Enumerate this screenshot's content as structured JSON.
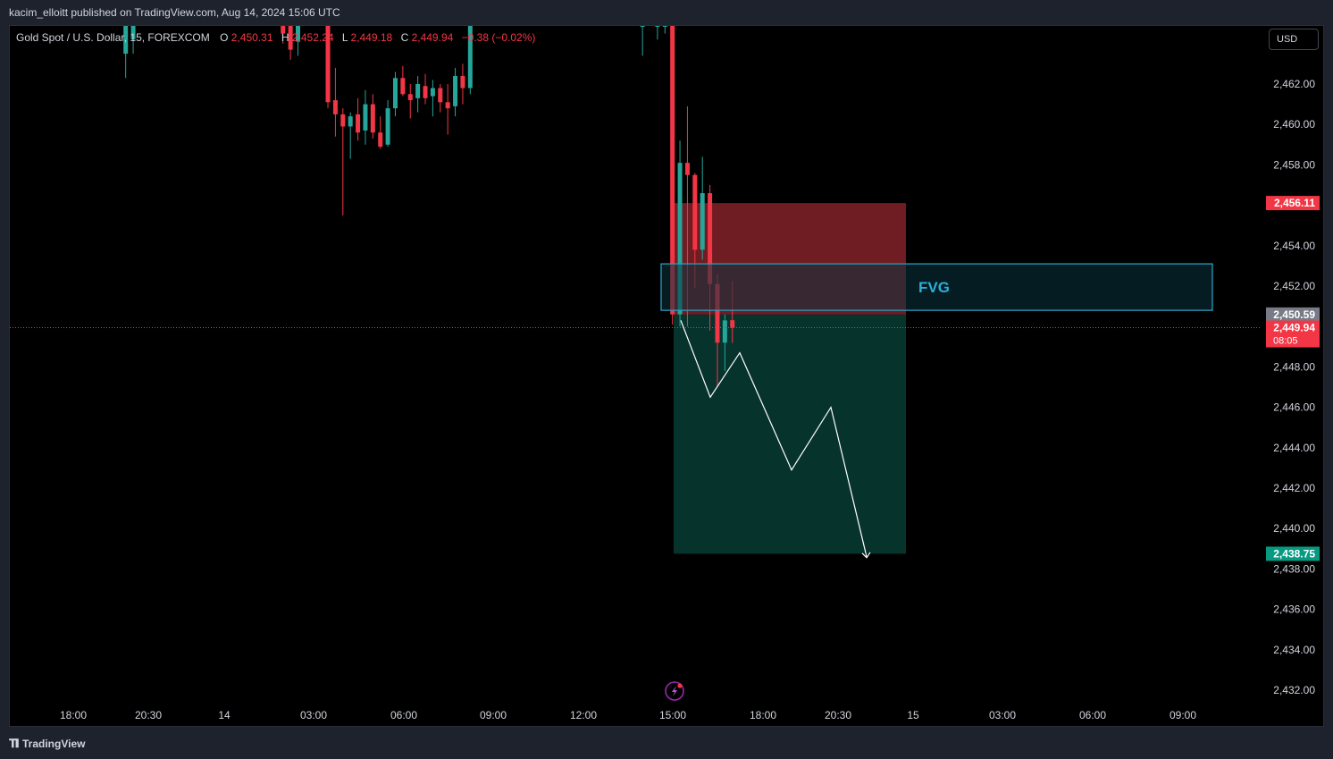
{
  "header": {
    "published": "kacim_elloitt published on TradingView.com, Aug 14, 2024 15:06 UTC"
  },
  "legend": {
    "symbol": "Gold Spot / U.S. Dollar, 15, FOREXCOM",
    "open_label": "O",
    "open": "2,450.31",
    "high_label": "H",
    "high": "2,452.24",
    "low_label": "L",
    "low": "2,449.18",
    "close_label": "C",
    "close": "2,449.94",
    "change": "−0.38 (−0.02%)"
  },
  "currency_button": "USD",
  "footer": {
    "brand": "TradingView"
  },
  "colors": {
    "up": "#26a69a",
    "down": "#f23645",
    "stop_zone": "#6f1c22",
    "target_zone": "#07332d",
    "fvg_border": "#2c9dbd",
    "fvg_fill": "#0a3340",
    "fvg_text": "#2ab0d8",
    "last_price_line": "#f23645"
  },
  "chart_data": {
    "type": "candlestick",
    "symbol": "Gold Spot / U.S. Dollar",
    "interval": "15",
    "y_axis": {
      "ticks": [
        2432,
        2434,
        2436,
        2438,
        2440,
        2442,
        2444,
        2446,
        2448,
        2450,
        2452,
        2454,
        2456,
        2458,
        2460,
        2462
      ],
      "tick_labels": [
        "2,432.00",
        "2,434.00",
        "2,436.00",
        "2,438.00",
        "2,440.00",
        "2,442.00",
        "2,444.00",
        "2,446.00",
        "2,448.00",
        "2,450.00",
        "2,452.00",
        "2,454.00",
        "2,456.00",
        "2,458.00",
        "2,460.00",
        "2,462.00"
      ],
      "hidden_tick_labels": [
        "2,450.00",
        "2,456.00"
      ]
    },
    "x_axis": {
      "tick_labels": [
        "18:00",
        "20:30",
        "14",
        "03:00",
        "06:00",
        "09:00",
        "12:00",
        "15:00",
        "18:00",
        "20:30",
        "15",
        "03:00",
        "06:00",
        "09:00"
      ]
    },
    "candles": [
      {
        "t": "Aug 13 19:45",
        "o": 2463.5,
        "h": 2465.0,
        "l": 2462.3,
        "c": 2465.0
      },
      {
        "t": "Aug 13 20:00",
        "o": 2464.2,
        "h": 2465.0,
        "l": 2463.5,
        "c": 2465.0
      },
      {
        "t": "Aug 14 01:00",
        "o": 2465.0,
        "h": 2465.0,
        "l": 2464.0,
        "c": 2464.5
      },
      {
        "t": "Aug 14 01:15",
        "o": 2465.0,
        "h": 2465.0,
        "l": 2463.2,
        "c": 2463.7
      },
      {
        "t": "Aug 14 01:30",
        "o": 2464.1,
        "h": 2465.0,
        "l": 2463.4,
        "c": 2465.0
      },
      {
        "t": "Aug 14 02:30",
        "o": 2465.0,
        "h": 2465.0,
        "l": 2460.8,
        "c": 2461.1
      },
      {
        "t": "Aug 14 02:45",
        "o": 2461.2,
        "h": 2462.8,
        "l": 2459.4,
        "c": 2460.5
      },
      {
        "t": "Aug 14 03:00",
        "o": 2460.5,
        "h": 2460.8,
        "l": 2455.5,
        "c": 2459.9
      },
      {
        "t": "Aug 14 03:15",
        "o": 2459.9,
        "h": 2460.6,
        "l": 2458.3,
        "c": 2460.4
      },
      {
        "t": "Aug 14 03:30",
        "o": 2460.5,
        "h": 2461.3,
        "l": 2459.2,
        "c": 2459.6
      },
      {
        "t": "Aug 14 03:45",
        "o": 2459.7,
        "h": 2461.7,
        "l": 2459.0,
        "c": 2461.0
      },
      {
        "t": "Aug 14 04:00",
        "o": 2461.0,
        "h": 2461.5,
        "l": 2459.3,
        "c": 2459.6
      },
      {
        "t": "Aug 14 04:15",
        "o": 2459.6,
        "h": 2460.4,
        "l": 2458.8,
        "c": 2458.9
      },
      {
        "t": "Aug 14 04:30",
        "o": 2459.0,
        "h": 2461.2,
        "l": 2458.9,
        "c": 2460.8
      },
      {
        "t": "Aug 14 04:45",
        "o": 2460.8,
        "h": 2462.6,
        "l": 2460.4,
        "c": 2462.3
      },
      {
        "t": "Aug 14 05:00",
        "o": 2462.3,
        "h": 2462.9,
        "l": 2461.4,
        "c": 2461.5
      },
      {
        "t": "Aug 14 05:15",
        "o": 2461.5,
        "h": 2462.0,
        "l": 2460.3,
        "c": 2461.2
      },
      {
        "t": "Aug 14 05:30",
        "o": 2461.3,
        "h": 2462.4,
        "l": 2460.6,
        "c": 2462.0
      },
      {
        "t": "Aug 14 05:45",
        "o": 2461.9,
        "h": 2462.5,
        "l": 2461.0,
        "c": 2461.3
      },
      {
        "t": "Aug 14 06:00",
        "o": 2461.4,
        "h": 2462.2,
        "l": 2460.4,
        "c": 2461.8
      },
      {
        "t": "Aug 14 06:15",
        "o": 2461.8,
        "h": 2462.0,
        "l": 2460.6,
        "c": 2461.1
      },
      {
        "t": "Aug 14 06:30",
        "o": 2461.1,
        "h": 2462.0,
        "l": 2459.5,
        "c": 2460.8
      },
      {
        "t": "Aug 14 06:45",
        "o": 2460.9,
        "h": 2462.8,
        "l": 2460.4,
        "c": 2462.4
      },
      {
        "t": "Aug 14 07:00",
        "o": 2462.4,
        "h": 2463.0,
        "l": 2461.0,
        "c": 2461.8
      },
      {
        "t": "Aug 14 07:15",
        "o": 2461.8,
        "h": 2465.0,
        "l": 2461.5,
        "c": 2465.0
      },
      {
        "t": "Aug 14 13:00",
        "o": 2465.0,
        "h": 2465.0,
        "l": 2463.4,
        "c": 2465.0
      },
      {
        "t": "Aug 14 13:30",
        "o": 2465.0,
        "h": 2465.0,
        "l": 2464.2,
        "c": 2465.0
      },
      {
        "t": "Aug 14 13:45",
        "o": 2465.0,
        "h": 2465.0,
        "l": 2464.5,
        "c": 2465.0
      },
      {
        "t": "Aug 14 14:00",
        "o": 2465.0,
        "h": 2465.0,
        "l": 2450.1,
        "c": 2450.6
      },
      {
        "t": "Aug 14 14:15",
        "o": 2450.6,
        "h": 2459.2,
        "l": 2450.0,
        "c": 2458.1
      },
      {
        "t": "Aug 14 14:30",
        "o": 2458.1,
        "h": 2460.9,
        "l": 2450.0,
        "c": 2457.5
      },
      {
        "t": "Aug 14 14:45",
        "o": 2457.5,
        "h": 2457.6,
        "l": 2451.9,
        "c": 2453.8
      },
      {
        "t": "Aug 14 15:00",
        "o": 2453.8,
        "h": 2458.4,
        "l": 2453.3,
        "c": 2456.6
      },
      {
        "t": "Aug 14 15:15",
        "o": 2456.6,
        "h": 2457.0,
        "l": 2449.8,
        "c": 2452.1
      },
      {
        "t": "Aug 14 15:30",
        "o": 2452.1,
        "h": 2452.6,
        "l": 2447.0,
        "c": 2449.2
      },
      {
        "t": "Aug 14 15:45",
        "o": 2449.2,
        "h": 2450.6,
        "l": 2447.8,
        "c": 2450.3
      },
      {
        "t": "Aug 14 16:00",
        "o": 2450.31,
        "h": 2452.24,
        "l": 2449.18,
        "c": 2449.94
      }
    ],
    "price_labels": {
      "stop_loss": "2,456.11",
      "entry": "2,450.59",
      "last": "2,449.94",
      "countdown": "08:05",
      "take_profit": "2,438.75"
    },
    "annotations": {
      "position_short": {
        "entry": 2450.59,
        "stop": 2456.11,
        "target": 2438.75
      },
      "fvg_zone": {
        "label": "FVG",
        "top": 2453.1,
        "bottom": 2450.8
      },
      "projected_path": [
        2450.3,
        2446.5,
        2448.7,
        2442.9,
        2446.0,
        2438.6
      ],
      "last_price_line": 2449.94
    }
  }
}
